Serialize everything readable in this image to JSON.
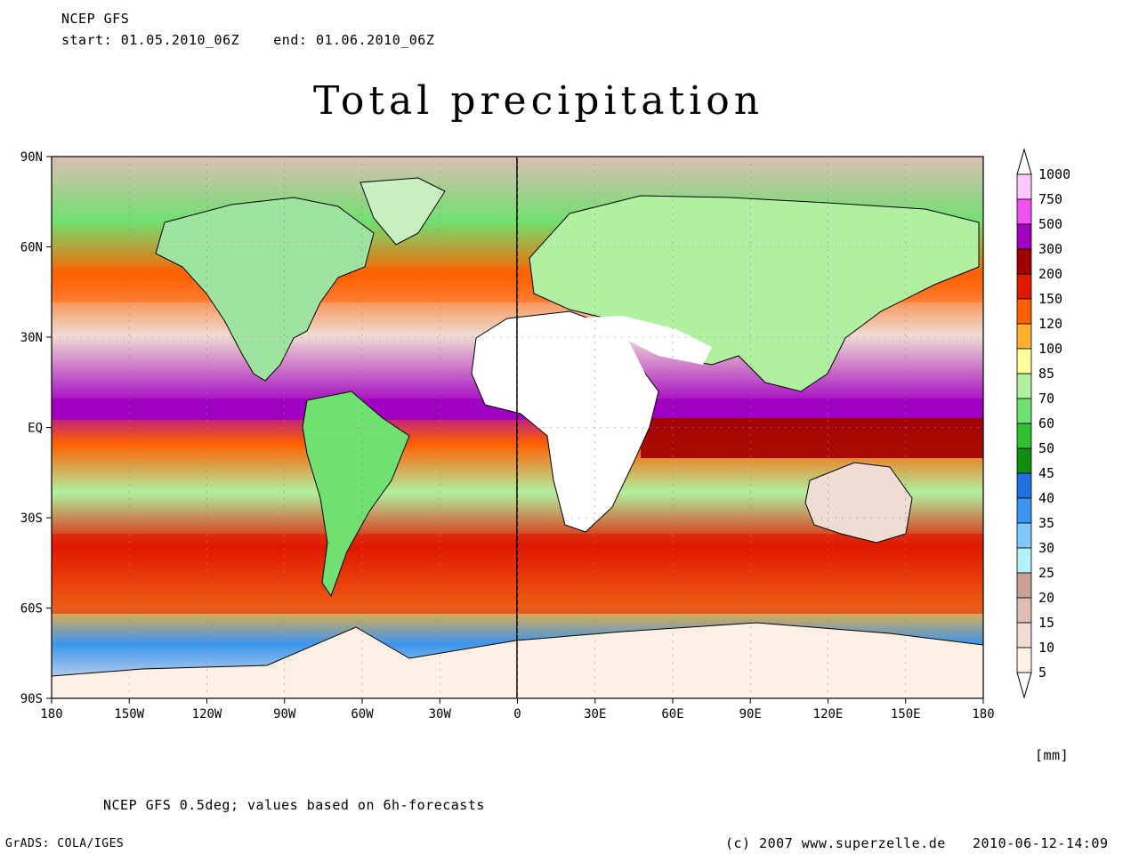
{
  "header": {
    "model": "NCEP GFS",
    "start_label": "start:",
    "start": "01.05.2010_06Z",
    "end_label": "end:",
    "end": "01.06.2010_06Z",
    "title": "Total precipitation"
  },
  "map": {
    "lat_labels": [
      "90N",
      "60N",
      "30N",
      "EQ",
      "30S",
      "60S",
      "90S"
    ],
    "lon_labels": [
      "180",
      "150W",
      "120W",
      "90W",
      "60W",
      "30W",
      "0",
      "30E",
      "60E",
      "90E",
      "120E",
      "150E",
      "180"
    ]
  },
  "legend": {
    "unit": "[mm]",
    "levels": [
      "1000",
      "750",
      "500",
      "300",
      "200",
      "150",
      "120",
      "100",
      "85",
      "70",
      "60",
      "50",
      "45",
      "40",
      "35",
      "30",
      "25",
      "20",
      "15",
      "10",
      "5"
    ],
    "colors": [
      "#ffc8ff",
      "#f050f0",
      "#a000c0",
      "#a00000",
      "#e01800",
      "#ff6000",
      "#ffb030",
      "#ffff9c",
      "#b0f0a0",
      "#70e070",
      "#30c030",
      "#108c10",
      "#2070e0",
      "#3c96f0",
      "#80c8ff",
      "#b4f0fa",
      "#c8a096",
      "#dcbeb4",
      "#f0dcd2",
      "#fff0e6"
    ]
  },
  "footer": {
    "source_note": "NCEP GFS 0.5deg; values based on 6h-forecasts",
    "grads": "GrADS: COLA/IGES",
    "copyright": "(c) 2007 www.superzelle.de",
    "timestamp": "2010-06-12-14:09"
  }
}
